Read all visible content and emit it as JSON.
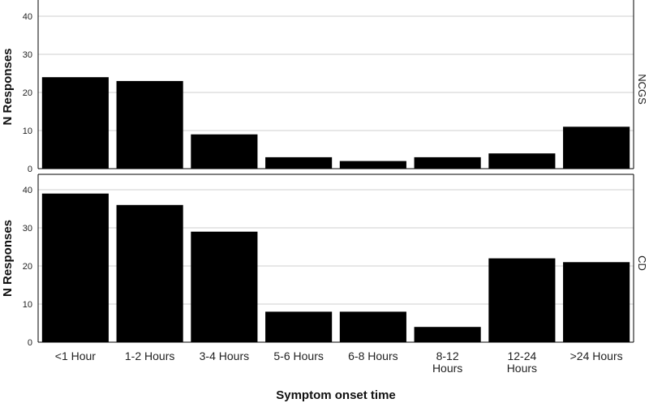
{
  "chart_data": {
    "type": "bar",
    "categories": [
      "<1 Hour",
      "1-2 Hours",
      "3-4 Hours",
      "5-6 Hours",
      "6-8 Hours",
      "8-12 Hours",
      "12-24 Hours",
      ">24 Hours"
    ],
    "xlabel": "Symptom onset time",
    "ylabel": "N Responses",
    "ylim": [
      0,
      40
    ],
    "yticks": [
      0,
      10,
      20,
      30,
      40
    ],
    "grid": true,
    "bar_color": "#000000",
    "panels": [
      {
        "label": "NCGS",
        "values": [
          24,
          23,
          9,
          3,
          2,
          3,
          4,
          11
        ]
      },
      {
        "label": "CD",
        "values": [
          39,
          36,
          29,
          8,
          8,
          4,
          22,
          21
        ]
      }
    ]
  }
}
